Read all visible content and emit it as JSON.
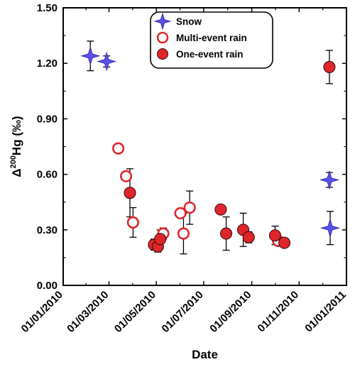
{
  "chart_data": {
    "type": "scatter",
    "xlabel": "Date",
    "ylabel_main": "Δ",
    "ylabel_sup": "200",
    "ylabel_rest": "Hg (‰)",
    "x_range": [
      "2010-01-01",
      "2011-01-01"
    ],
    "ylim": [
      0,
      1.5
    ],
    "x_ticks": [
      "01/01/2010",
      "01/03/2010",
      "01/05/2010",
      "01/07/2010",
      "01/09/2010",
      "01/11/2010",
      "01/01/2011"
    ],
    "y_ticks": [
      "0.00",
      "0.30",
      "0.60",
      "0.90",
      "1.20",
      "1.50"
    ],
    "legend_position": "top-right",
    "colors": {
      "snow": "#5b4ff0",
      "rain": "#e0262b",
      "error_bar": "#000000"
    },
    "series": [
      {
        "name": "Snow",
        "marker": "star",
        "points": [
          {
            "x": "2010-02-05",
            "y": 1.24,
            "err": 0.08
          },
          {
            "x": "2010-02-26",
            "y": 1.21,
            "err": 0.03
          },
          {
            "x": "2010-12-10",
            "y": 0.57,
            "err": 0.04
          },
          {
            "x": "2010-12-11",
            "y": 0.31,
            "err": 0.09
          }
        ]
      },
      {
        "name": "Multi-event rain",
        "marker": "open-circle",
        "points": [
          {
            "x": "2010-03-13",
            "y": 0.74,
            "err": 0.0
          },
          {
            "x": "2010-03-23",
            "y": 0.59,
            "err": 0.02
          },
          {
            "x": "2010-04-01",
            "y": 0.34,
            "err": 0.08
          },
          {
            "x": "2010-05-10",
            "y": 0.28,
            "err": 0.03
          },
          {
            "x": "2010-06-01",
            "y": 0.39,
            "err": 0.02
          },
          {
            "x": "2010-06-05",
            "y": 0.28,
            "err": 0.11
          },
          {
            "x": "2010-06-13",
            "y": 0.42,
            "err": 0.09
          },
          {
            "x": "2010-10-05",
            "y": 0.24,
            "err": 0.0
          }
        ]
      },
      {
        "name": "One-event rain",
        "marker": "filled-circle",
        "points": [
          {
            "x": "2010-03-28",
            "y": 0.5,
            "err": 0.13
          },
          {
            "x": "2010-04-28",
            "y": 0.22,
            "err": 0.03
          },
          {
            "x": "2010-05-03",
            "y": 0.21,
            "err": 0.03
          },
          {
            "x": "2010-05-06",
            "y": 0.25,
            "err": 0.05
          },
          {
            "x": "2010-07-23",
            "y": 0.41,
            "err": 0.0
          },
          {
            "x": "2010-07-30",
            "y": 0.28,
            "err": 0.09
          },
          {
            "x": "2010-08-21",
            "y": 0.3,
            "err": 0.09
          },
          {
            "x": "2010-08-28",
            "y": 0.26,
            "err": 0.03
          },
          {
            "x": "2010-10-01",
            "y": 0.27,
            "err": 0.05
          },
          {
            "x": "2010-10-13",
            "y": 0.23,
            "err": 0.0
          },
          {
            "x": "2010-12-10",
            "y": 1.18,
            "err": 0.09
          }
        ]
      }
    ]
  }
}
